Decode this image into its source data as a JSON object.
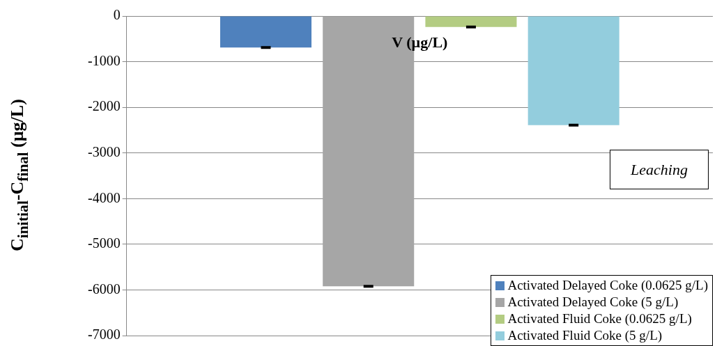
{
  "chart_data": {
    "type": "bar",
    "ylabel": "C$_{initial}$-C$_{final}$ (µg/L)",
    "categories": [
      "V (µg/L)"
    ],
    "series": [
      {
        "name": "Activated Delayed Coke (0.0625 g/L)",
        "color": "#4f81bd",
        "values": [
          -690
        ],
        "errors": [
          15
        ]
      },
      {
        "name": "Activated Delayed Coke (5 g/L)",
        "color": "#a6a6a6",
        "values": [
          -5920
        ],
        "errors": [
          15
        ]
      },
      {
        "name": "Activated Fluid Coke (0.0625 g/L)",
        "color": "#b3cc82",
        "values": [
          -240
        ],
        "errors": [
          15
        ]
      },
      {
        "name": "Activated Fluid Coke (5 g/L)",
        "color": "#93cddd",
        "values": [
          -2390
        ],
        "errors": [
          15
        ]
      }
    ],
    "ylim": [
      -7000,
      0
    ],
    "yticks": [
      -7000,
      -6000,
      -5000,
      -4000,
      -3000,
      -2000,
      -1000,
      0
    ],
    "grid": "y",
    "legend": "bottom right",
    "annotations": [
      "Leaching"
    ]
  }
}
